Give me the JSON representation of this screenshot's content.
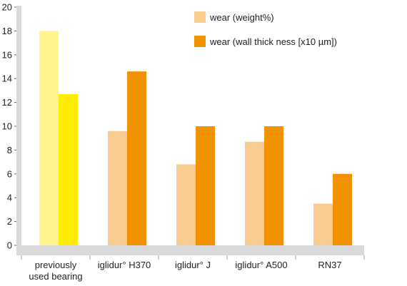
{
  "chart_data": {
    "type": "bar",
    "categories": [
      [
        "previously",
        "used bearing"
      ],
      [
        "iglidur° H370"
      ],
      [
        "iglidur° J"
      ],
      [
        "iglidur° A500"
      ],
      [
        "RN37"
      ]
    ],
    "series": [
      {
        "name": "wear (weight%)",
        "values": [
          18.0,
          9.6,
          6.8,
          8.7,
          3.5
        ]
      },
      {
        "name": "wear (wall thick ness [x10 µm])",
        "values": [
          12.7,
          14.6,
          10.0,
          10.0,
          6.0
        ]
      }
    ],
    "ylim": [
      0,
      20
    ],
    "yticks": [
      0,
      2,
      4,
      6,
      8,
      10,
      12,
      14,
      16,
      18,
      20
    ],
    "grid": false,
    "legend": "top-right",
    "colors": {
      "series": [
        "#f9cd8f",
        "#f39200"
      ],
      "first_category": [
        "#fff48e",
        "#ffec00"
      ],
      "axis": "#d9d9d9"
    }
  }
}
